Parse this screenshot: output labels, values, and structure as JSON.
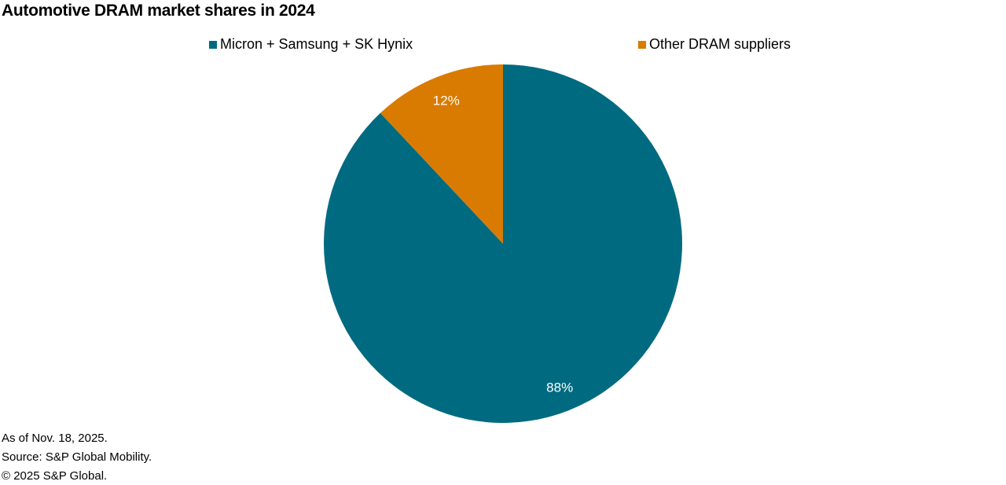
{
  "chart_data": {
    "type": "pie",
    "title": "Automotive DRAM market shares in 2024",
    "categories": [
      "Micron + Samsung + SK Hynix",
      "Other DRAM suppliers"
    ],
    "values": [
      88,
      12
    ],
    "data_labels": [
      "88%",
      "12%"
    ],
    "colors": [
      "#006a80",
      "#d97b00"
    ],
    "legend_placement": "top"
  },
  "footnotes": [
    "As of Nov. 18, 2025.",
    "Source: S&P Global Mobility.",
    "© 2025 S&P Global."
  ]
}
